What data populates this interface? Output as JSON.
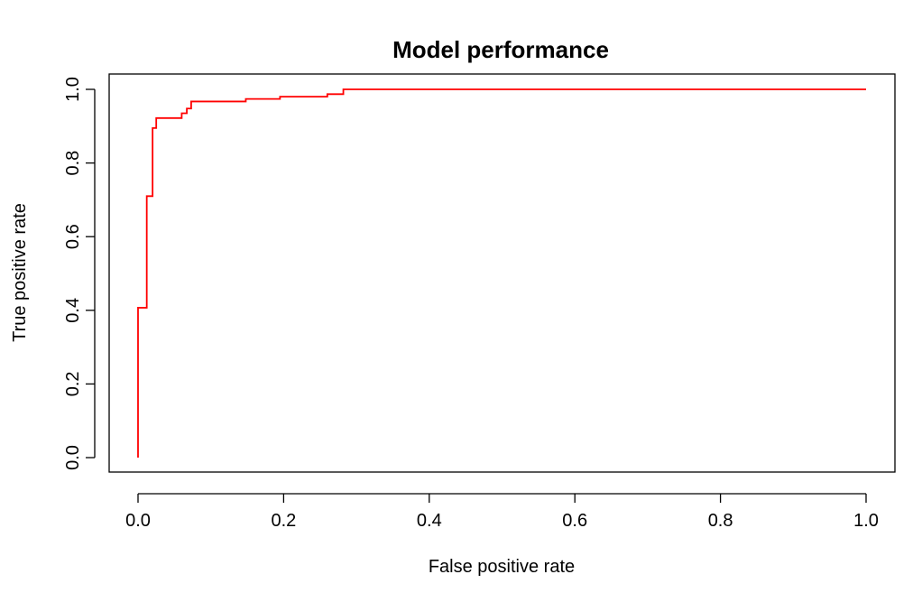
{
  "chart_data": {
    "type": "line",
    "title": "Model performance",
    "xlabel": "False positive rate",
    "ylabel": "True positive rate",
    "xlim": [
      0,
      1
    ],
    "ylim": [
      0,
      1
    ],
    "x_ticks": [
      "0.0",
      "0.2",
      "0.4",
      "0.6",
      "0.8",
      "1.0"
    ],
    "y_ticks": [
      "0.0",
      "0.2",
      "0.4",
      "0.6",
      "0.8",
      "1.0"
    ],
    "grid": false,
    "legend": "none",
    "line_color": "#ff0000",
    "series": [
      {
        "x": [
          0,
          0,
          0.012,
          0.012,
          0.02,
          0.02,
          0.025,
          0.025,
          0.06,
          0.06,
          0.067,
          0.067,
          0.073,
          0.073,
          0.148,
          0.148,
          0.195,
          0.195,
          0.26,
          0.26,
          0.282,
          0.282,
          1.0
        ],
        "y": [
          0,
          0.407,
          0.407,
          0.71,
          0.71,
          0.895,
          0.895,
          0.922,
          0.922,
          0.935,
          0.935,
          0.948,
          0.948,
          0.967,
          0.967,
          0.974,
          0.974,
          0.98,
          0.98,
          0.987,
          0.987,
          1.0,
          1.0
        ]
      }
    ]
  }
}
